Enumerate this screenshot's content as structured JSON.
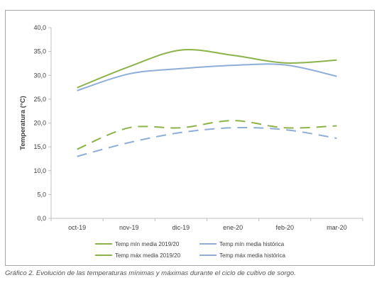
{
  "chart_data": {
    "type": "line",
    "ylabel": "Temperatura (°C)",
    "xlabel": "",
    "categories": [
      "oct-19",
      "nov-19",
      "dic-19",
      "ene-20",
      "feb-20",
      "mar-20"
    ],
    "ylim": [
      0,
      40
    ],
    "yticks": [
      0,
      5,
      10,
      15,
      20,
      25,
      30,
      35,
      40
    ],
    "ytick_labels": [
      "0,0",
      "5,0",
      "10,0",
      "15,0",
      "20,0",
      "25,0",
      "30,0",
      "35,0",
      "40,0"
    ],
    "grid": false,
    "legend_position": "bottom",
    "series": [
      {
        "name": "Temp mín media 2019/20",
        "color": "#8cb34a",
        "dash": "dashed",
        "values": [
          14.5,
          19.0,
          19.0,
          20.5,
          19.0,
          19.4
        ]
      },
      {
        "name": "Temp mín media histórica",
        "color": "#8eaed8",
        "dash": "dashed",
        "values": [
          13.0,
          15.9,
          18.0,
          19.0,
          18.6,
          16.8
        ]
      },
      {
        "name": "Temp máx media 2019/20",
        "color": "#8cb34a",
        "dash": "solid",
        "values": [
          27.4,
          31.8,
          35.3,
          34.2,
          32.6,
          33.2
        ]
      },
      {
        "name": "Temp máx media histórica",
        "color": "#8eaed8",
        "dash": "solid",
        "values": [
          26.8,
          30.3,
          31.4,
          32.1,
          32.2,
          29.8
        ]
      }
    ]
  },
  "caption": "Gráfico 2. Evolución de las temperaturas mínimas y máximas durante el ciclo de cultivo de sorgo."
}
